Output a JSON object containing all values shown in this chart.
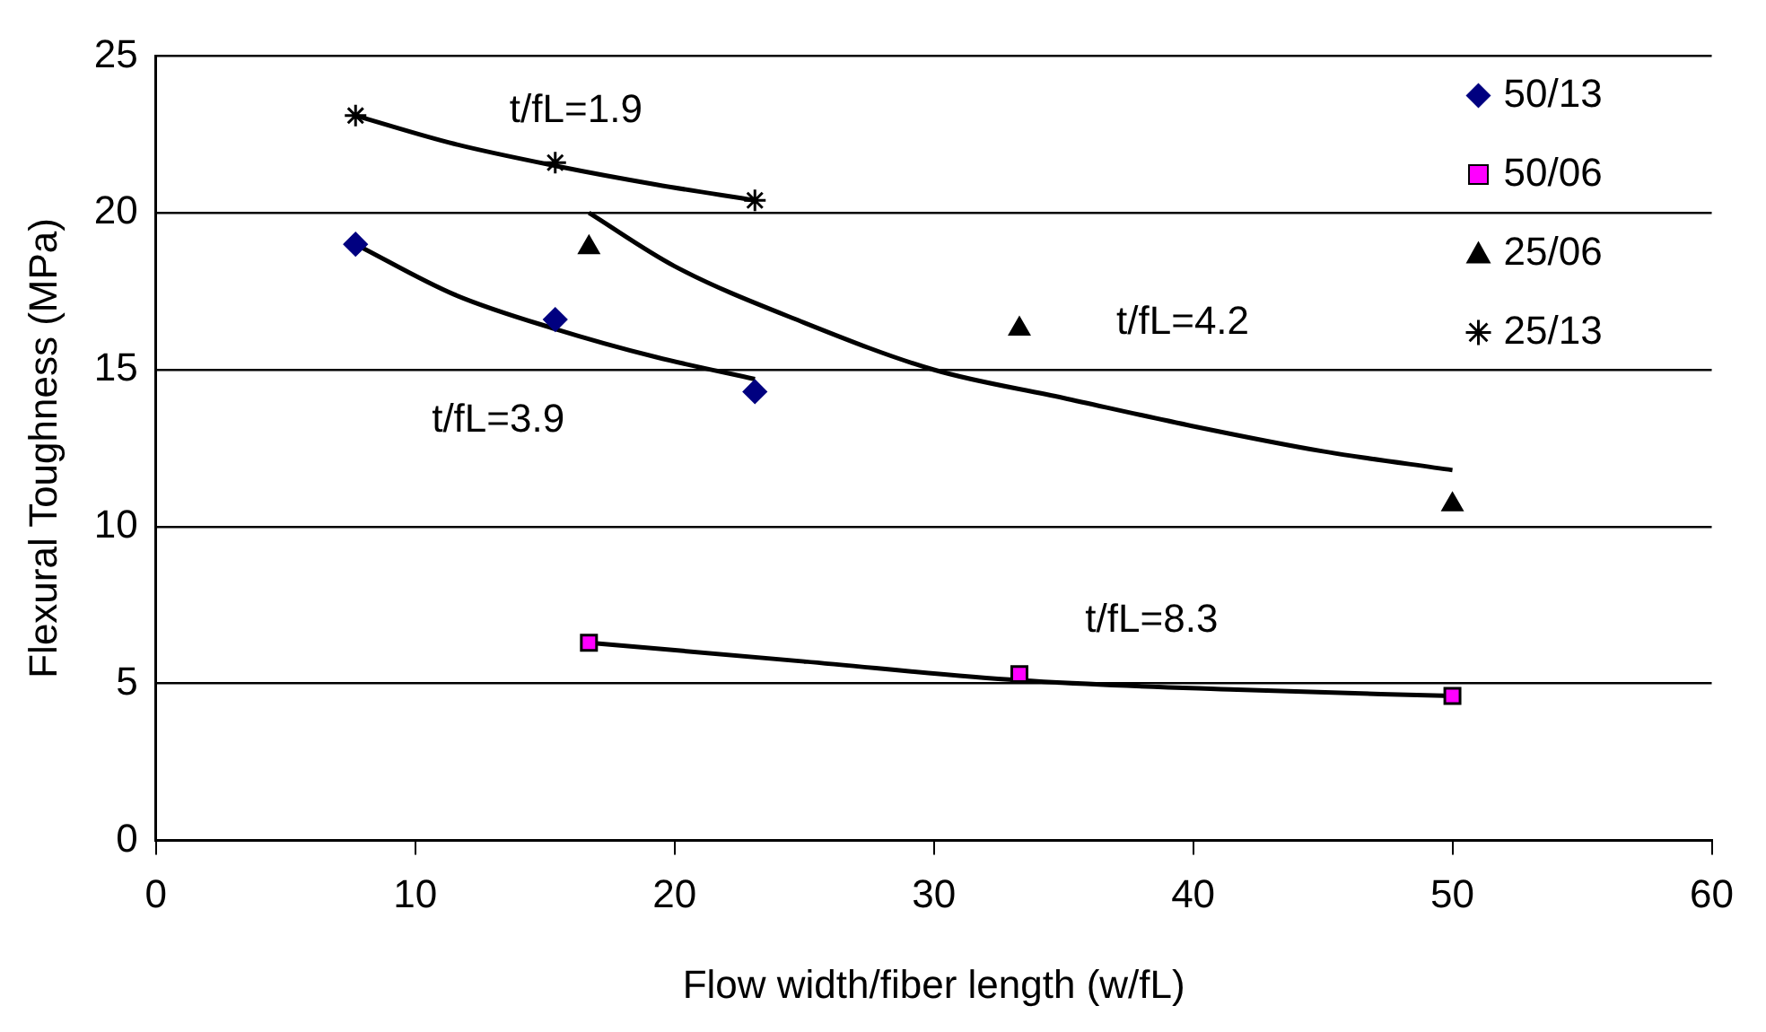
{
  "chart_data": {
    "type": "scatter",
    "xlabel": "Flow width/fiber length (w/fL)",
    "ylabel": "Flexural Toughness (MPa)",
    "xlim": [
      0,
      60
    ],
    "xticks": [
      0,
      10,
      20,
      30,
      40,
      50,
      60
    ],
    "ylim": [
      0,
      25
    ],
    "yticks": [
      0,
      5,
      10,
      15,
      20,
      25
    ],
    "grid": "y",
    "legend": "top right",
    "series": [
      {
        "name": "50/13",
        "color": "#000080",
        "marker": "diamond",
        "x": [
          7.7,
          15.4,
          23.1
        ],
        "values": [
          19.0,
          16.6,
          14.3
        ]
      },
      {
        "name": "50/06",
        "color": "#ff00ff",
        "marker": "square",
        "x": [
          16.7,
          33.3,
          50
        ],
        "values": [
          6.3,
          5.3,
          4.6
        ]
      },
      {
        "name": "25/06",
        "color": "#000000",
        "marker": "triangle",
        "x": [
          16.7,
          33.3,
          50
        ],
        "values": [
          18.9,
          16.3,
          10.7
        ]
      },
      {
        "name": "25/13",
        "color": "#000000",
        "marker": "cross",
        "x": [
          7.7,
          15.4,
          23.1
        ],
        "values": [
          23.1,
          21.6,
          20.4
        ]
      },
      {
        "type": "line",
        "color": "#000000",
        "marker": "none",
        "x": [
          7.7,
          11.5,
          15.4,
          19.3,
          23.1
        ],
        "values": [
          23.1,
          22.2,
          21.5,
          20.9,
          20.4
        ]
      },
      {
        "type": "line",
        "color": "#000000",
        "marker": "none",
        "x": [
          7.7,
          11.5,
          15.4,
          19.3,
          23.1
        ],
        "values": [
          19.0,
          17.4,
          16.3,
          15.4,
          14.7
        ]
      },
      {
        "type": "line",
        "color": "#000000",
        "marker": "none",
        "x": [
          16.7,
          20,
          25,
          30,
          35,
          40,
          45,
          50
        ],
        "values": [
          20.0,
          18.3,
          16.5,
          15.0,
          14.1,
          13.2,
          12.4,
          11.8
        ]
      },
      {
        "type": "line",
        "color": "#000000",
        "marker": "none",
        "x": [
          16.7,
          25,
          33.3,
          41.7,
          50
        ],
        "values": [
          6.3,
          5.7,
          5.1,
          4.8,
          4.6
        ]
      }
    ],
    "annotations": [
      "t/fL=1.9",
      "t/fL=3.9",
      "t/fL=4.2",
      "t/fL=8.3"
    ]
  }
}
